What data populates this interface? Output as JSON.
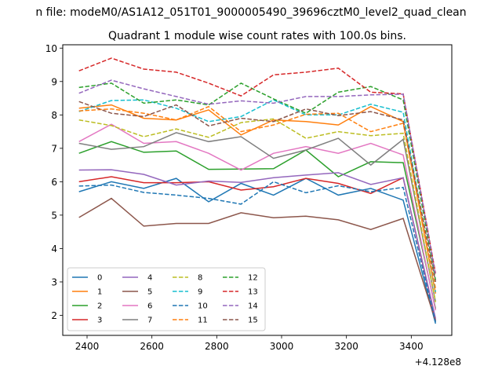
{
  "chart_data": {
    "type": "line",
    "suptitle": "n file: modeM0/AS1A12_051T01_9000005490_39696cztM0_level2_quad_clean",
    "title": "Quadrant 1 module wise count rates with 100.0s bins.",
    "xlabel": "",
    "ylabel": "",
    "x_offset_label": "+4.128e8",
    "xlim": [
      2325,
      3525
    ],
    "ylim": [
      1.4,
      10.1
    ],
    "xticks": [
      2400,
      2600,
      2800,
      3000,
      3200,
      3400
    ],
    "xtick_labels": [
      "2400",
      "2600",
      "2800",
      "3000",
      "3200",
      "3400"
    ],
    "yticks": [
      2,
      3,
      4,
      5,
      6,
      7,
      8,
      9,
      10
    ],
    "ytick_labels": [
      "2",
      "3",
      "4",
      "5",
      "6",
      "7",
      "8",
      "9",
      "10"
    ],
    "legend_position": "lower-left",
    "x": [
      2375,
      2475,
      2575,
      2675,
      2775,
      2875,
      2975,
      3075,
      3175,
      3275,
      3375,
      3475
    ],
    "series": [
      {
        "name": "0",
        "color": "#1f77b4",
        "dash": "solid",
        "values": [
          5.7,
          6.0,
          5.8,
          6.1,
          5.4,
          5.95,
          5.6,
          6.1,
          5.6,
          5.8,
          5.45,
          1.75
        ]
      },
      {
        "name": "1",
        "color": "#ff7f0e",
        "dash": "solid",
        "values": [
          8.2,
          8.3,
          7.9,
          7.85,
          8.15,
          7.4,
          7.85,
          7.8,
          7.7,
          8.25,
          7.8,
          2.65
        ]
      },
      {
        "name": "2",
        "color": "#2ca02c",
        "dash": "solid",
        "values": [
          6.85,
          7.2,
          6.88,
          6.92,
          6.37,
          6.38,
          6.39,
          6.95,
          6.15,
          6.6,
          6.57,
          2.2
        ]
      },
      {
        "name": "3",
        "color": "#d62728",
        "dash": "solid",
        "values": [
          6.0,
          6.15,
          5.97,
          5.97,
          6.0,
          5.75,
          5.85,
          6.1,
          5.95,
          5.65,
          6.12,
          1.85
        ]
      },
      {
        "name": "4",
        "color": "#9467bd",
        "dash": "solid",
        "values": [
          6.35,
          6.36,
          6.22,
          5.9,
          6.02,
          5.98,
          6.12,
          6.2,
          6.27,
          5.92,
          6.12,
          1.9
        ]
      },
      {
        "name": "5",
        "color": "#8c564b",
        "dash": "solid",
        "values": [
          4.93,
          5.5,
          4.67,
          4.75,
          4.75,
          5.07,
          4.92,
          4.97,
          4.86,
          4.57,
          4.9,
          1.82
        ]
      },
      {
        "name": "6",
        "color": "#e377c2",
        "dash": "solid",
        "values": [
          7.2,
          7.72,
          7.15,
          7.2,
          6.85,
          6.35,
          6.85,
          7.05,
          6.85,
          7.15,
          6.8,
          2.15
        ]
      },
      {
        "name": "7",
        "color": "#7f7f7f",
        "dash": "solid",
        "values": [
          7.15,
          6.97,
          7.05,
          7.47,
          7.2,
          7.35,
          6.7,
          6.95,
          7.3,
          6.5,
          7.27,
          2.4
        ]
      },
      {
        "name": "8",
        "color": "#bcbd22",
        "dash": "dashed",
        "values": [
          7.85,
          7.68,
          7.35,
          7.58,
          7.33,
          7.77,
          7.88,
          7.3,
          7.5,
          7.38,
          7.45,
          2.4
        ]
      },
      {
        "name": "9",
        "color": "#17becf",
        "dash": "dashed",
        "values": [
          8.1,
          8.43,
          8.45,
          8.2,
          7.8,
          7.95,
          8.45,
          8.0,
          8.0,
          8.32,
          8.08,
          2.7
        ]
      },
      {
        "name": "10",
        "color": "#1f77b4",
        "dash": "dashed",
        "values": [
          5.87,
          5.9,
          5.68,
          5.6,
          5.5,
          5.33,
          6.0,
          5.67,
          5.88,
          5.7,
          5.83,
          1.8
        ]
      },
      {
        "name": "11",
        "color": "#ff7f0e",
        "dash": "dashed",
        "values": [
          8.12,
          8.18,
          8.05,
          7.85,
          8.25,
          7.5,
          7.7,
          8.02,
          8.05,
          7.5,
          7.75,
          2.8
        ]
      },
      {
        "name": "12",
        "color": "#2ca02c",
        "dash": "dashed",
        "values": [
          8.82,
          8.95,
          8.35,
          8.45,
          8.3,
          8.95,
          8.48,
          8.05,
          8.68,
          8.85,
          8.45,
          3.05
        ]
      },
      {
        "name": "13",
        "color": "#d62728",
        "dash": "dashed",
        "values": [
          9.32,
          9.7,
          9.37,
          9.28,
          8.95,
          8.57,
          9.2,
          9.28,
          9.4,
          8.68,
          8.63,
          3.25
        ]
      },
      {
        "name": "14",
        "color": "#9467bd",
        "dash": "dashed",
        "values": [
          8.65,
          9.04,
          8.78,
          8.55,
          8.32,
          8.42,
          8.35,
          8.55,
          8.55,
          8.6,
          8.62,
          3.2
        ]
      },
      {
        "name": "15",
        "color": "#8c564b",
        "dash": "dashed",
        "values": [
          8.4,
          8.05,
          7.95,
          8.3,
          7.67,
          7.9,
          7.8,
          8.18,
          7.98,
          8.1,
          7.85,
          3.0
        ]
      }
    ]
  }
}
